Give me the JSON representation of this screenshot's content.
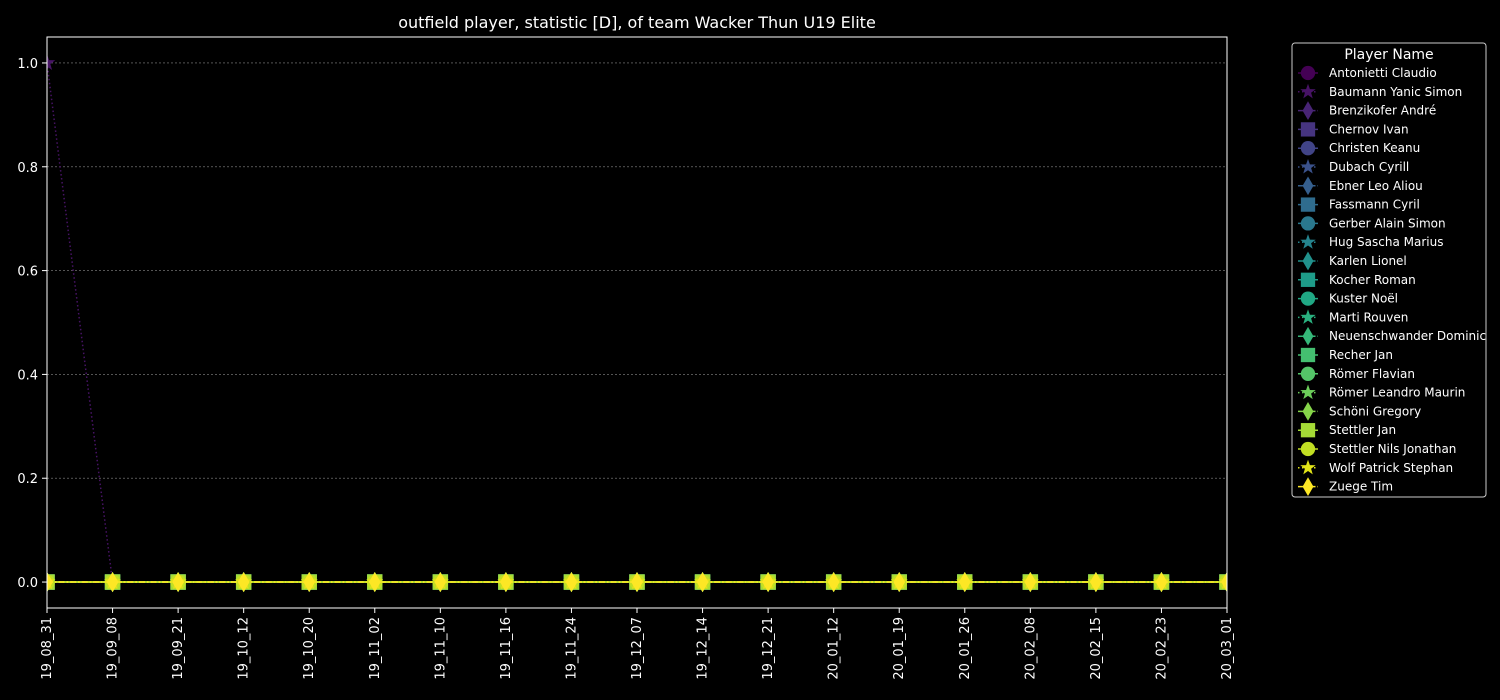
{
  "chart_data": {
    "type": "line",
    "title": "outfield player, statistic [D], of team Wacker Thun U19 Elite",
    "xlabel": "",
    "ylabel": "",
    "x": [
      "19_08_31",
      "19_09_08",
      "19_09_21",
      "19_10_12",
      "19_10_20",
      "19_11_02",
      "19_11_10",
      "19_11_16",
      "19_11_24",
      "19_12_07",
      "19_12_14",
      "19_12_21",
      "20_01_12",
      "20_01_19",
      "20_01_26",
      "20_02_08",
      "20_02_15",
      "20_02_23",
      "20_03_01"
    ],
    "ylim": [
      -0.05,
      1.05
    ],
    "yticks": [
      0.0,
      0.2,
      0.4,
      0.6,
      0.8,
      1.0
    ],
    "ytick_labels": [
      "0.0",
      "0.2",
      "0.4",
      "0.6",
      "0.8",
      "1.0"
    ],
    "grid": "horizontal dotted",
    "legend_title": "Player Name",
    "legend_position": "outside right",
    "series": [
      {
        "name": "Antonietti Claudio",
        "color": "#440154",
        "marker": "circle",
        "dash": "solid",
        "values": [
          0,
          0,
          0,
          0,
          0,
          0,
          0,
          0,
          0,
          0,
          0,
          0,
          0,
          0,
          0,
          0,
          0,
          0,
          0
        ]
      },
      {
        "name": "Baumann Yanic Simon",
        "color": "#471365",
        "marker": "star",
        "dash": "dotted",
        "values": [
          1,
          0,
          0,
          0,
          0,
          0,
          0,
          0,
          0,
          0,
          0,
          0,
          0,
          0,
          0,
          0,
          0,
          0,
          0
        ]
      },
      {
        "name": "Brenzikofer André",
        "color": "#482475",
        "marker": "diamond",
        "dash": "dashdot",
        "values": [
          0,
          0,
          0,
          0,
          0,
          0,
          0,
          0,
          0,
          0,
          0,
          0,
          0,
          0,
          0,
          0,
          0,
          0,
          0
        ]
      },
      {
        "name": "Chernov Ivan",
        "color": "#463480",
        "marker": "square",
        "dash": "solid",
        "values": [
          0,
          0,
          0,
          0,
          0,
          0,
          0,
          0,
          0,
          0,
          0,
          0,
          0,
          0,
          0,
          0,
          0,
          0,
          0
        ]
      },
      {
        "name": "Christen Keanu",
        "color": "#414487",
        "marker": "circle",
        "dash": "solid",
        "values": [
          0,
          0,
          0,
          0,
          0,
          0,
          0,
          0,
          0,
          0,
          0,
          0,
          0,
          0,
          0,
          0,
          0,
          0,
          0
        ]
      },
      {
        "name": "Dubach Cyrill",
        "color": "#3b528b",
        "marker": "star",
        "dash": "dotted",
        "values": [
          0,
          0,
          0,
          0,
          0,
          0,
          0,
          0,
          0,
          0,
          0,
          0,
          0,
          0,
          0,
          0,
          0,
          0,
          0
        ]
      },
      {
        "name": "Ebner Leo Aliou",
        "color": "#355f8d",
        "marker": "diamond",
        "dash": "dashdot",
        "values": [
          0,
          0,
          0,
          0,
          0,
          0,
          0,
          0,
          0,
          0,
          0,
          0,
          0,
          0,
          0,
          0,
          0,
          0,
          0
        ]
      },
      {
        "name": "Fassmann Cyril",
        "color": "#2f6c8e",
        "marker": "square",
        "dash": "solid",
        "values": [
          0,
          0,
          0,
          0,
          0,
          0,
          0,
          0,
          0,
          0,
          0,
          0,
          0,
          0,
          0,
          0,
          0,
          0,
          0
        ]
      },
      {
        "name": "Gerber Alain Simon",
        "color": "#2a788e",
        "marker": "circle",
        "dash": "solid",
        "values": [
          0,
          0,
          0,
          0,
          0,
          0,
          0,
          0,
          0,
          0,
          0,
          0,
          0,
          0,
          0,
          0,
          0,
          0,
          0
        ]
      },
      {
        "name": "Hug Sascha Marius",
        "color": "#25848e",
        "marker": "star",
        "dash": "dotted",
        "values": [
          0,
          0,
          0,
          0,
          0,
          0,
          0,
          0,
          0,
          0,
          0,
          0,
          0,
          0,
          0,
          0,
          0,
          0,
          0
        ]
      },
      {
        "name": "Karlen Lionel",
        "color": "#21918c",
        "marker": "diamond",
        "dash": "dashdot",
        "values": [
          0,
          0,
          0,
          0,
          0,
          0,
          0,
          0,
          0,
          0,
          0,
          0,
          0,
          0,
          0,
          0,
          0,
          0,
          0
        ]
      },
      {
        "name": "Kocher Roman",
        "color": "#1e9c89",
        "marker": "square",
        "dash": "solid",
        "values": [
          0,
          0,
          0,
          0,
          0,
          0,
          0,
          0,
          0,
          0,
          0,
          0,
          0,
          0,
          0,
          0,
          0,
          0,
          0
        ]
      },
      {
        "name": "Kuster Noël",
        "color": "#20a884",
        "marker": "circle",
        "dash": "solid",
        "values": [
          0,
          0,
          0,
          0,
          0,
          0,
          0,
          0,
          0,
          0,
          0,
          0,
          0,
          0,
          0,
          0,
          0,
          0,
          0
        ]
      },
      {
        "name": "Marti Rouven",
        "color": "#2ab07f",
        "marker": "star",
        "dash": "dotted",
        "values": [
          0,
          0,
          0,
          0,
          0,
          0,
          0,
          0,
          0,
          0,
          0,
          0,
          0,
          0,
          0,
          0,
          0,
          0,
          0
        ]
      },
      {
        "name": "Neuenschwander Dominic",
        "color": "#35b779",
        "marker": "diamond",
        "dash": "dashdot",
        "values": [
          0,
          0,
          0,
          0,
          0,
          0,
          0,
          0,
          0,
          0,
          0,
          0,
          0,
          0,
          0,
          0,
          0,
          0,
          0
        ]
      },
      {
        "name": "Recher Jan",
        "color": "#44bf70",
        "marker": "square",
        "dash": "solid",
        "values": [
          0,
          0,
          0,
          0,
          0,
          0,
          0,
          0,
          0,
          0,
          0,
          0,
          0,
          0,
          0,
          0,
          0,
          0,
          0
        ]
      },
      {
        "name": "Römer Flavian",
        "color": "#54c568",
        "marker": "circle",
        "dash": "solid",
        "values": [
          0,
          0,
          0,
          0,
          0,
          0,
          0,
          0,
          0,
          0,
          0,
          0,
          0,
          0,
          0,
          0,
          0,
          0,
          0
        ]
      },
      {
        "name": "Römer Leandro Maurin",
        "color": "#6ccd5a",
        "marker": "star",
        "dash": "dotted",
        "values": [
          0,
          0,
          0,
          0,
          0,
          0,
          0,
          0,
          0,
          0,
          0,
          0,
          0,
          0,
          0,
          0,
          0,
          0,
          0
        ]
      },
      {
        "name": "Schöni Gregory",
        "color": "#86d549",
        "marker": "diamond",
        "dash": "dashdot",
        "values": [
          0,
          0,
          0,
          0,
          0,
          0,
          0,
          0,
          0,
          0,
          0,
          0,
          0,
          0,
          0,
          0,
          0,
          0,
          0
        ]
      },
      {
        "name": "Stettler Jan",
        "color": "#a5db36",
        "marker": "square",
        "dash": "solid",
        "values": [
          0,
          0,
          0,
          0,
          0,
          0,
          0,
          0,
          0,
          0,
          0,
          0,
          0,
          0,
          0,
          0,
          0,
          0,
          0
        ]
      },
      {
        "name": "Stettler Nils Jonathan",
        "color": "#c2df23",
        "marker": "circle",
        "dash": "solid",
        "values": [
          0,
          0,
          0,
          0,
          0,
          0,
          0,
          0,
          0,
          0,
          0,
          0,
          0,
          0,
          0,
          0,
          0,
          0,
          0
        ]
      },
      {
        "name": "Wolf Patrick Stephan",
        "color": "#e2e418",
        "marker": "star",
        "dash": "dotted",
        "values": [
          0,
          0,
          0,
          0,
          0,
          0,
          0,
          0,
          0,
          0,
          0,
          0,
          0,
          0,
          0,
          0,
          0,
          0,
          0
        ]
      },
      {
        "name": "Zuege Tim",
        "color": "#fde725",
        "marker": "diamond",
        "dash": "dashdot",
        "values": [
          0,
          0,
          0,
          0,
          0,
          0,
          0,
          0,
          0,
          0,
          0,
          0,
          0,
          0,
          0,
          0,
          0,
          0,
          0
        ]
      }
    ]
  }
}
